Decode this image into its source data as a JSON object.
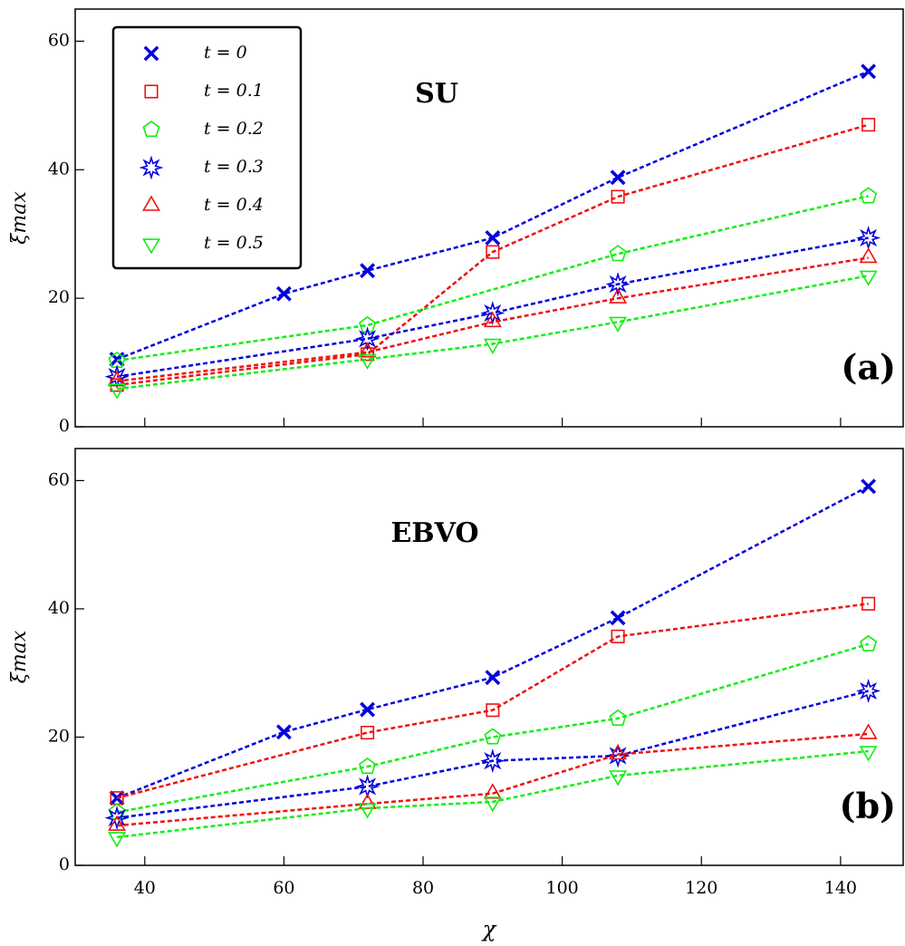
{
  "chart_data": [
    {
      "type": "line",
      "annotation": "SU",
      "panel_label": "(a)",
      "ylabel": "ξmax",
      "xlim": [
        30,
        149
      ],
      "ylim": [
        0,
        65
      ],
      "xticks": [
        40,
        60,
        80,
        100,
        120,
        140
      ],
      "yticks": [
        0,
        20,
        40,
        60
      ],
      "xtick_labels": false,
      "legend": "upper left",
      "series": [
        {
          "name": "t = 0",
          "color": "#0000dd",
          "marker": "x",
          "x": [
            36,
            60,
            72,
            90,
            108,
            144
          ],
          "values": [
            10.5,
            20.7,
            24.3,
            29.4,
            38.8,
            55.3
          ]
        },
        {
          "name": "t = 0.1",
          "color": "#ee1111",
          "marker": "square",
          "x": [
            36,
            72,
            90,
            108,
            144
          ],
          "values": [
            6.5,
            11.3,
            27.2,
            35.8,
            47.0
          ]
        },
        {
          "name": "t = 0.2",
          "color": "#11ee11",
          "marker": "pentagon",
          "x": [
            36,
            72,
            108,
            144
          ],
          "values": [
            10.3,
            15.8,
            26.9,
            35.9
          ]
        },
        {
          "name": "t = 0.3",
          "color": "#0000dd",
          "marker": "star",
          "x": [
            36,
            72,
            90,
            108,
            144
          ],
          "values": [
            7.8,
            13.7,
            17.7,
            22.2,
            29.4
          ]
        },
        {
          "name": "t = 0.4",
          "color": "#ee1111",
          "marker": "triangle-up",
          "x": [
            36,
            72,
            90,
            108,
            144
          ],
          "values": [
            7.1,
            11.6,
            16.3,
            20.0,
            26.3
          ]
        },
        {
          "name": "t = 0.5",
          "color": "#11ee11",
          "marker": "triangle-down",
          "x": [
            36,
            72,
            90,
            108,
            144
          ],
          "values": [
            5.9,
            10.5,
            12.9,
            16.3,
            23.5
          ]
        }
      ]
    },
    {
      "type": "line",
      "annotation": "EBVO",
      "panel_label": "(b)",
      "ylabel": "ξmax",
      "xlabel": "χ",
      "xlim": [
        30,
        149
      ],
      "ylim": [
        0,
        65
      ],
      "xticks": [
        40,
        60,
        80,
        100,
        120,
        140
      ],
      "yticks": [
        0,
        20,
        40,
        60
      ],
      "xtick_labels": true,
      "series": [
        {
          "color": "#0000dd",
          "marker": "x",
          "x": [
            36,
            60,
            72,
            90,
            108,
            144
          ],
          "values": [
            10.5,
            20.8,
            24.3,
            29.3,
            38.6,
            59.1
          ]
        },
        {
          "color": "#ee1111",
          "marker": "square",
          "x": [
            36,
            72,
            90,
            108,
            144
          ],
          "values": [
            10.5,
            20.7,
            24.2,
            35.7,
            40.8
          ]
        },
        {
          "color": "#11ee11",
          "marker": "pentagon",
          "x": [
            36,
            72,
            90,
            108,
            144
          ],
          "values": [
            8.3,
            15.4,
            20.0,
            22.9,
            34.5
          ]
        },
        {
          "color": "#0000dd",
          "marker": "star",
          "x": [
            36,
            72,
            90,
            108,
            144
          ],
          "values": [
            7.4,
            12.3,
            16.3,
            17.1,
            27.2
          ]
        },
        {
          "color": "#ee1111",
          "marker": "triangle-up",
          "x": [
            36,
            72,
            90,
            108,
            144
          ],
          "values": [
            6.2,
            9.6,
            11.2,
            17.3,
            20.5
          ]
        },
        {
          "color": "#11ee11",
          "marker": "triangle-down",
          "x": [
            36,
            72,
            90,
            108,
            144
          ],
          "values": [
            4.4,
            8.9,
            9.9,
            14.0,
            17.8
          ]
        }
      ]
    }
  ]
}
